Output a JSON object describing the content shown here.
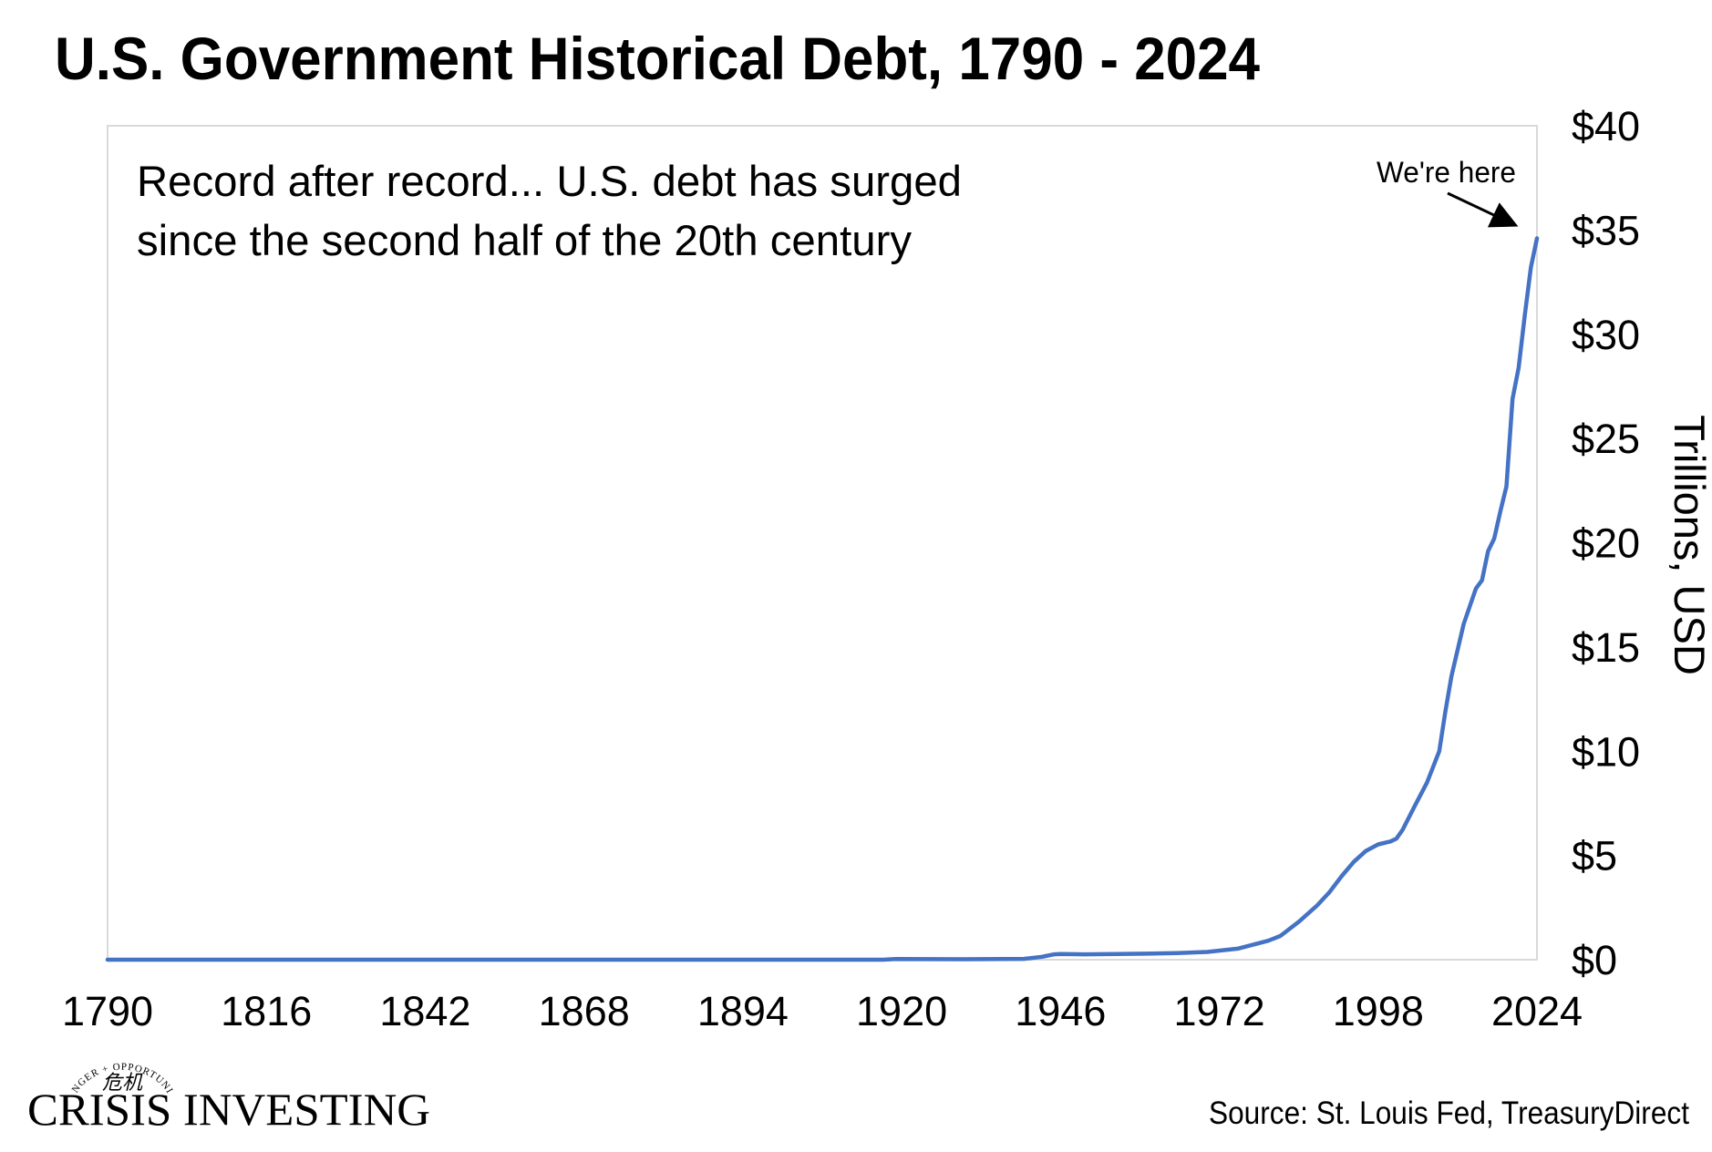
{
  "chart_data": {
    "type": "line",
    "title": "U.S. Government Historical Debt, 1790 - 2024",
    "annotation_lines": [
      "Record after record... U.S. debt has surged",
      "since the second half of the 20th century"
    ],
    "pointer_label": "We're here",
    "ylabel": "Trillions, USD",
    "xlim": [
      1790,
      2024
    ],
    "ylim": [
      0,
      40
    ],
    "x_ticks": [
      "1790",
      "1816",
      "1842",
      "1868",
      "1894",
      "1920",
      "1946",
      "1972",
      "1998",
      "2024"
    ],
    "y_ticks": [
      "$0",
      "$5",
      "$10",
      "$15",
      "$20",
      "$25",
      "$30",
      "$35",
      "$40"
    ],
    "y_tick_values": [
      0,
      5,
      10,
      15,
      20,
      25,
      30,
      35,
      40
    ],
    "y_axis_position": "right",
    "grid": false,
    "legend": "none",
    "line_color": "#4472C4",
    "series": [
      {
        "x": [
          1790,
          1800,
          1820,
          1840,
          1860,
          1865,
          1880,
          1900,
          1917,
          1919,
          1930,
          1940,
          1943,
          1945,
          1946,
          1950,
          1955,
          1960,
          1965,
          1970,
          1975,
          1980,
          1982,
          1985,
          1988,
          1990,
          1992,
          1994,
          1996,
          1998,
          2000,
          2001,
          2002,
          2004,
          2006,
          2008,
          2009,
          2010,
          2012,
          2014,
          2015,
          2016,
          2017,
          2018,
          2019,
          2020,
          2021,
          2022,
          2023,
          2024
        ],
        "y": [
          0,
          0,
          0,
          0,
          0,
          0,
          0,
          0,
          0,
          0.03,
          0.02,
          0.04,
          0.14,
          0.26,
          0.27,
          0.26,
          0.27,
          0.29,
          0.32,
          0.37,
          0.53,
          0.91,
          1.14,
          1.82,
          2.6,
          3.23,
          4.0,
          4.69,
          5.22,
          5.53,
          5.67,
          5.81,
          6.23,
          7.38,
          8.5,
          10.0,
          11.9,
          13.6,
          16.1,
          17.8,
          18.2,
          19.6,
          20.2,
          21.5,
          22.7,
          26.9,
          28.4,
          30.9,
          33.2,
          34.6
        ]
      }
    ]
  },
  "source": "Source: St. Louis Fed, TreasuryDirect",
  "logo": {
    "name": "CRISIS INVESTING",
    "tagline": "DANGER + OPPORTUNITY",
    "glyphs": "危机"
  }
}
